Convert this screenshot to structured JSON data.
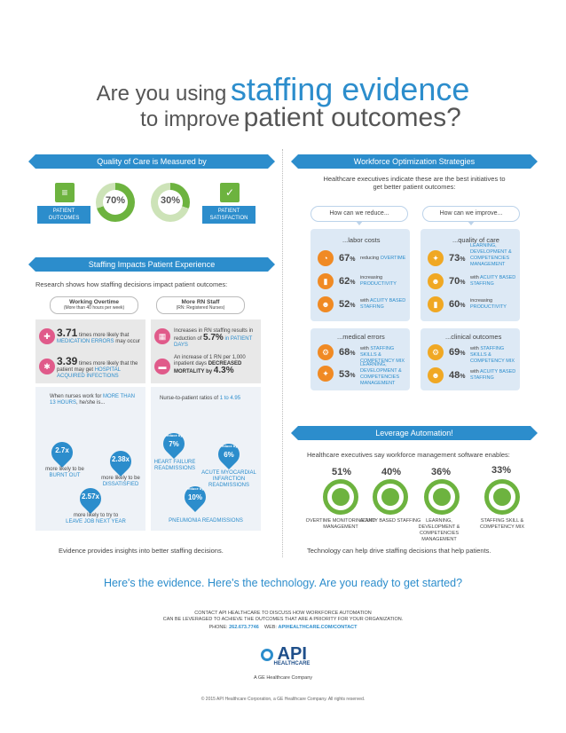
{
  "header": {
    "line1_prefix": "Are you using",
    "line1_emph": "staffing evidence",
    "line2_prefix": "to improve",
    "line2_emph": "patient outcomes?"
  },
  "quality": {
    "banner": "Quality of Care is Measured by",
    "left_tag": "PATIENT OUTCOMES",
    "left_pct": "70%",
    "right_pct": "30%",
    "right_tag": "PATIENT SATISFACTION",
    "left_fraction": 0.7,
    "right_fraction": 0.3
  },
  "impacts": {
    "banner": "Staffing Impacts Patient Experience",
    "intro": "Research shows how staffing decisions impact patient outcomes:",
    "col1_title": "Working Overtime",
    "col1_sub": "(More than 40 hours per week)",
    "col2_title": "More RN Staff",
    "col2_sub": "(RN: Registered Nurses)",
    "s1_num": "3.71",
    "s1_text": "times more likely that",
    "s1_emph": "MEDICATION ERRORS",
    "s1_tail": "may occur",
    "s2_num": "3.39",
    "s2_text": "times more likely that the patient may get",
    "s2_emph": "HOSPITAL ACQUIRED INFECTIONS",
    "s3_text": "Increases in RN staffing results in reduction of",
    "s3_num": "5.7%",
    "s3_emph": "in PATIENT DAYS",
    "s4_text": "An increase of 1 RN per 1,000 inpatient days",
    "s4_emph": "DECREASED MORTALITY by",
    "s4_num": "4.3%",
    "burn_intro": "When nurses work for",
    "burn_emph": "MORE THAN 13 HOURS",
    "burn_tail": ", he/she is...",
    "d1": "2.7x",
    "d1_label": "more likely to be",
    "d1_emph": "BURNT OUT",
    "d2": "2.38x",
    "d2_label": "more likely to be",
    "d2_emph": "DISSATISFIED",
    "d3": "2.57x",
    "d3_label": "more likely to try to",
    "d3_emph": "LEAVE JOB NEXT YEAR",
    "ratio_intro": "Nurse-to-patient ratios of",
    "ratio_emph": "1 to 4.95",
    "r1_small": "reduce by",
    "r1": "7%",
    "r1_label": "HEART FAILURE READMISSIONS",
    "r2_small": "reduce by",
    "r2": "6%",
    "r2_label": "ACUTE MYOCARDIAL INFARCTION READMISSIONS",
    "r3_small": "reduce by",
    "r3": "10%",
    "r3_label": "PNEUMONIA READMISSIONS",
    "footer": "Evidence provides insights into better staffing decisions."
  },
  "workforce": {
    "banner": "Workforce Optimization Strategies",
    "intro": "Healthcare executives indicate these are the best initiatives to get better patient outcomes:",
    "reduce_pill": "How can we reduce...",
    "improve_pill": "How can we improve...",
    "labor": {
      "title": "...labor costs",
      "items": [
        {
          "pct": "67",
          "pre": "reducing",
          "emph": "OVERTIME"
        },
        {
          "pct": "62",
          "pre": "increasing",
          "emph": "PRODUCTIVITY"
        },
        {
          "pct": "52",
          "pre": "with",
          "emph": "ACUITY BASED STAFFING"
        }
      ]
    },
    "quality": {
      "title": "...quality of care",
      "items": [
        {
          "pct": "73",
          "pre": "",
          "emph": "LEARNING, DEVELOPMENT & COMPETENCIES MANAGEMENT"
        },
        {
          "pct": "70",
          "pre": "with",
          "emph": "ACUITY BASED STAFFING"
        },
        {
          "pct": "60",
          "pre": "increasing",
          "emph": "PRODUCTIVITY"
        }
      ]
    },
    "errors": {
      "title": "...medical errors",
      "items": [
        {
          "pct": "68",
          "pre": "with",
          "emph": "STAFFING SKILLS & COMPETENCY MIX"
        },
        {
          "pct": "53",
          "pre": "",
          "emph": "LEARNING, DEVELOPMENT & COMPETENCIES MANAGEMENT"
        }
      ]
    },
    "clinical": {
      "title": "...clinical outcomes",
      "items": [
        {
          "pct": "69",
          "pre": "with",
          "emph": "STAFFING SKILLS & COMPETENCY MIX"
        },
        {
          "pct": "48",
          "pre": "with",
          "emph": "ACUITY BASED STAFFING"
        }
      ]
    },
    "pct_sign": "%"
  },
  "automation": {
    "banner": "Leverage Automation!",
    "intro": "Healthcare executives say workforce management software enables:",
    "items": [
      {
        "pct": "51%",
        "label": "OVERTIME MONITORING AND MANAGEMENT",
        "icon": "clock-icon"
      },
      {
        "pct": "40%",
        "label": "ACUITY BASED STAFFING",
        "icon": "magnifier-icon"
      },
      {
        "pct": "36%",
        "label": "LEARNING, DEVELOPMENT & COMPETENCIES MANAGEMENT",
        "icon": "lightbulb-icon"
      },
      {
        "pct": "33%",
        "label": "STAFFING SKILL & COMPETENCY MIX",
        "icon": "people-icon"
      }
    ],
    "footer": "Technology can help drive staffing decisions that help patients."
  },
  "cta": "Here's the evidence. Here's the technology. Are you ready to get started?",
  "contact": {
    "line1": "CONTACT API HEALTHCARE TO DISCUSS HOW WORKFORCE AUTOMATION",
    "line2": "CAN BE LEVERAGED TO ACHIEVE THE OUTCOMES THAT ARE A PRIORITY FOR YOUR ORGANIZATION.",
    "phone_label": "PHONE:",
    "phone": "262.673.7746",
    "web_label": "WEB:",
    "web": "APIHEALTHCARE.COM/CONTACT"
  },
  "logo": {
    "brand": "API",
    "sub": "HEALTHCARE",
    "company": "A GE Healthcare Company"
  },
  "copyright": "© 2015 API Healthcare Corporation, a GE Healthcare Company. All rights reserved.",
  "colors": {
    "blue": "#2c8dcc",
    "green": "#6db33f",
    "orange": "#f08a24"
  }
}
